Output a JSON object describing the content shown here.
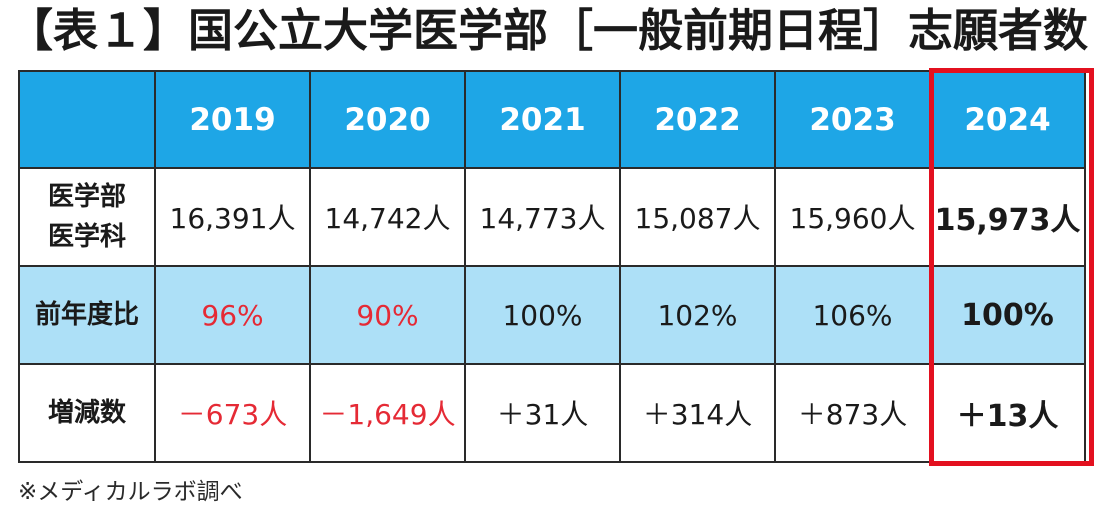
{
  "title": "【表１】国公立大学医学部［一般前期日程］志願者数",
  "table": {
    "header_years": [
      "2019",
      "2020",
      "2021",
      "2022",
      "2023",
      "2024"
    ],
    "rows": [
      {
        "label_line1": "医学部",
        "label_line2": "医学科",
        "cells": [
          "16,391人",
          "14,742人",
          "14,773人",
          "15,087人",
          "15,960人",
          "15,973人"
        ]
      },
      {
        "label": "前年度比",
        "cells": [
          "96%",
          "90%",
          "100%",
          "102%",
          "106%",
          "100%"
        ]
      },
      {
        "label": "増減数",
        "cells": [
          "－673人",
          "－1,649人",
          "＋31人",
          "＋314人",
          "＋873人",
          "＋13人"
        ]
      }
    ]
  },
  "highlight_color": "#e3101f",
  "header_color": "#1ea6e6",
  "band_color": "#ade0f7",
  "negative_color": "#e52a35",
  "note": "※メディカルラボ調べ"
}
